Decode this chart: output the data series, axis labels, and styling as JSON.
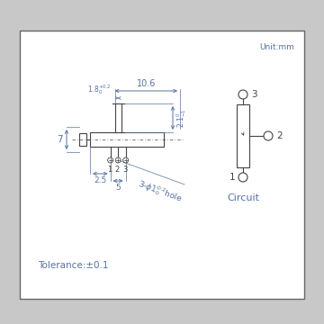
{
  "unit_text": "Unit:mm",
  "tolerance_text": "Tolerance:±0.1",
  "circuit_text": "Circuit",
  "dim_color": "#5872a0",
  "line_color": "#444444",
  "bg_outer": "#c8c8c8",
  "bg_inner": "#ffffff",
  "fig_size": [
    3.6,
    3.6
  ],
  "dpi": 100
}
